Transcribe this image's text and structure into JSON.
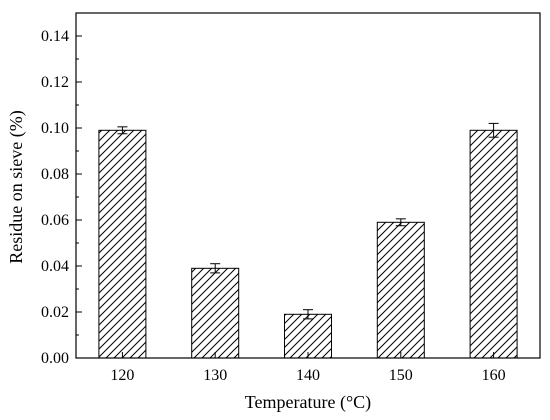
{
  "chart_data": {
    "type": "bar",
    "categories": [
      "120",
      "130",
      "140",
      "150",
      "160"
    ],
    "values": [
      0.099,
      0.039,
      0.019,
      0.059,
      0.099
    ],
    "errors": [
      0.0015,
      0.002,
      0.002,
      0.0015,
      0.003
    ],
    "xlabel": "Temperature (°C)",
    "ylabel": "Residue on sieve (%)",
    "ylim": [
      0,
      0.15
    ],
    "yticks": [
      "0.00",
      "0.02",
      "0.04",
      "0.06",
      "0.08",
      "0.10",
      "0.12",
      "0.14"
    ],
    "grid": false,
    "bar_pattern": "diagonal-hatch",
    "bar_color": "#000000"
  }
}
